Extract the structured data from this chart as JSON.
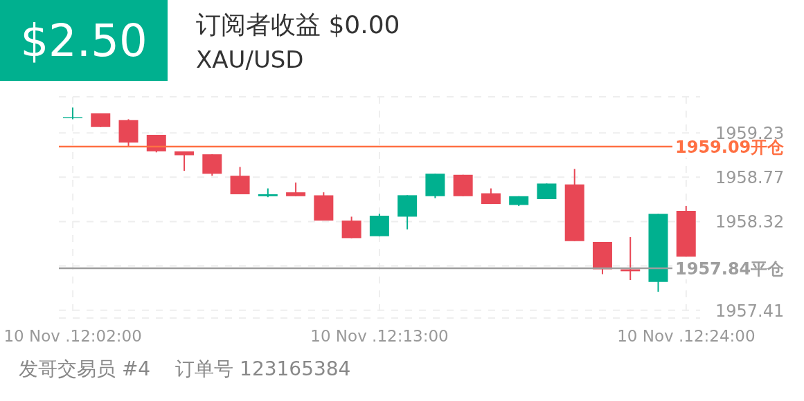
{
  "chart_data": {
    "type": "candlestick",
    "title": "订阅者收益 $0.00",
    "subtitle": "XAU/USD",
    "annotations": [
      "$2.50",
      "发哥交易员 #4",
      "订单号 123165384"
    ],
    "categories": [
      "10 Nov .12:02:00",
      null,
      null,
      null,
      null,
      null,
      null,
      null,
      null,
      null,
      null,
      "10 Nov .12:13:00",
      null,
      null,
      null,
      null,
      null,
      null,
      null,
      null,
      null,
      null,
      "10 Nov .12:24:00"
    ],
    "ohlc": [
      [
        1959.38,
        1959.49,
        1959.37,
        1959.39
      ],
      [
        1959.43,
        1959.43,
        1959.29,
        1959.29
      ],
      [
        1959.36,
        1959.37,
        1959.09,
        1959.13
      ],
      [
        1959.21,
        1959.21,
        1959.03,
        1959.04
      ],
      [
        1959.04,
        1959.04,
        1958.84,
        1959.0
      ],
      [
        1959.01,
        1959.01,
        1958.79,
        1958.81
      ],
      [
        1958.79,
        1958.88,
        1958.6,
        1958.6
      ],
      [
        1958.58,
        1958.66,
        1958.57,
        1958.6
      ],
      [
        1958.62,
        1958.72,
        1958.58,
        1958.58
      ],
      [
        1958.59,
        1958.62,
        1958.33,
        1958.33
      ],
      [
        1958.33,
        1958.37,
        1958.15,
        1958.15
      ],
      [
        1958.17,
        1958.4,
        1958.17,
        1958.38
      ],
      [
        1958.37,
        1958.59,
        1958.24,
        1958.59
      ],
      [
        1958.58,
        1958.81,
        1958.56,
        1958.81
      ],
      [
        1958.8,
        1958.8,
        1958.58,
        1958.58
      ],
      [
        1958.61,
        1958.66,
        1958.5,
        1958.5
      ],
      [
        1958.49,
        1958.58,
        1958.48,
        1958.58
      ],
      [
        1958.55,
        1958.71,
        1958.55,
        1958.71
      ],
      [
        1958.7,
        1958.86,
        1958.12,
        1958.12
      ],
      [
        1958.11,
        1958.11,
        1957.78,
        1957.83
      ],
      [
        1957.83,
        1958.16,
        1957.72,
        1957.81
      ],
      [
        1957.7,
        1958.4,
        1957.6,
        1958.4
      ],
      [
        1958.43,
        1958.48,
        1957.96,
        1957.96
      ]
    ],
    "colors": [
      "#00b08f",
      "#e84755",
      "#e84755",
      "#e84755",
      "#e84755",
      "#e84755",
      "#e84755",
      "#00b08f",
      "#e84755",
      "#e84755",
      "#e84755",
      "#00b08f",
      "#00b08f",
      "#00b08f",
      "#e84755",
      "#e84755",
      "#00b08f",
      "#00b08f",
      "#e84755",
      "#e84755",
      "#e84755",
      "#00b08f",
      "#e84755"
    ],
    "ylim": [
      1957.33,
      1959.6
    ],
    "yticks": [
      1959.23,
      {
        "value": 1958.775,
        "label": "1958.77"
      },
      1958.32,
      {
        "value": 1957.865,
        "label": null
      },
      1957.41
    ],
    "ref_lines": [
      {
        "axis": "y",
        "value": 1959.09,
        "label": "1959.09开仓",
        "color": "#ff7043"
      },
      {
        "axis": "y",
        "value": 1957.84,
        "label": "1957.84平仓",
        "color": "#9e9e9e"
      }
    ],
    "grid": true,
    "legend": false
  }
}
